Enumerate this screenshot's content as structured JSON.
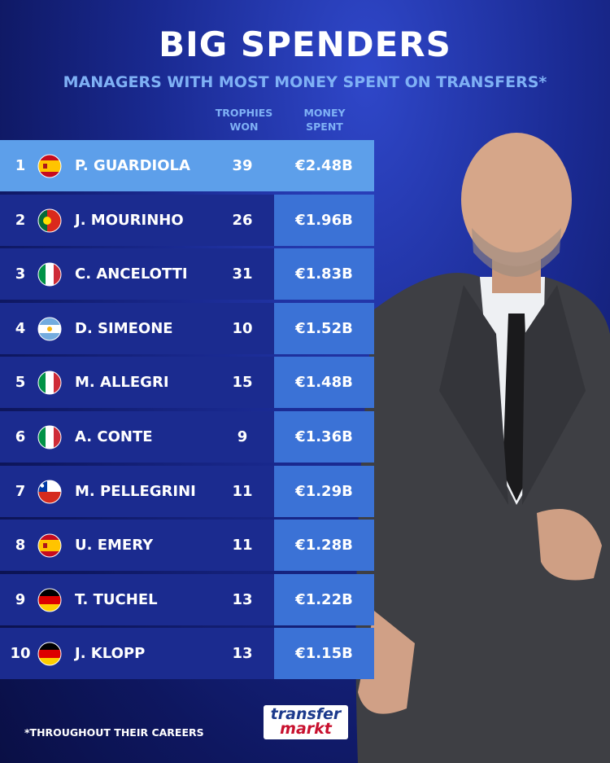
{
  "header": {
    "title": "BIG SPENDERS",
    "subtitle": "MANAGERS WITH MOST MONEY SPENT ON TRANSFERS*"
  },
  "table": {
    "columns": [
      "TROPHIES WON",
      "MONEY SPENT"
    ],
    "rows": [
      [
        1,
        "P. GUARDIOLA",
        39,
        "€2.48B"
      ],
      [
        2,
        "J. MOURINHO",
        26,
        "€1.96B"
      ],
      [
        3,
        "C. ANCELOTTI",
        31,
        "€1.83B"
      ],
      [
        4,
        "D. SIMEONE",
        10,
        "€1.52B"
      ],
      [
        5,
        "M. ALLEGRI",
        15,
        "€1.48B"
      ],
      [
        6,
        "A. CONTE",
        9,
        "€1.36B"
      ],
      [
        7,
        "M. PELLEGRINI",
        11,
        "€1.29B"
      ],
      [
        8,
        "U. EMERY",
        11,
        "€1.28B"
      ],
      [
        9,
        "T. TUCHEL",
        13,
        "€1.22B"
      ],
      [
        10,
        "J. KLOPP",
        13,
        "€1.15B"
      ]
    ]
  },
  "footnote": "*THROUGHOUT THEIR CAREERS",
  "logo": [
    "transfer",
    "markt"
  ]
}
